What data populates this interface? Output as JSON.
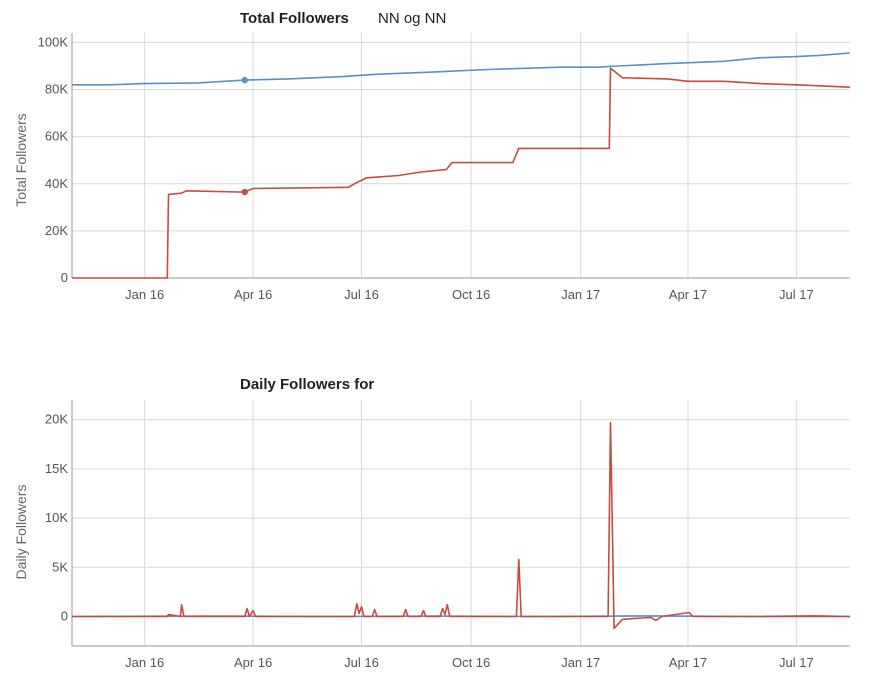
{
  "colors": {
    "series_blue": "#5b8fc9",
    "series_red": "#c94a3e",
    "grid": "#d9d9d9"
  },
  "chart_data": [
    {
      "type": "line",
      "title": "Total Followers",
      "subtitle": "NN og NN",
      "ylabel": "Total Followers",
      "xlabel": "",
      "xlim": [
        "2015-11-01",
        "2017-08-15"
      ],
      "ylim": [
        0,
        104000
      ],
      "x_ticks": [
        {
          "date": "2016-01-01",
          "label": "Jan 16"
        },
        {
          "date": "2016-04-01",
          "label": "Apr 16"
        },
        {
          "date": "2016-07-01",
          "label": "Jul 16"
        },
        {
          "date": "2016-10-01",
          "label": "Oct 16"
        },
        {
          "date": "2017-01-01",
          "label": "Jan 17"
        },
        {
          "date": "2017-04-01",
          "label": "Apr 17"
        },
        {
          "date": "2017-07-01",
          "label": "Jul 17"
        }
      ],
      "y_ticks": [
        {
          "value": 0,
          "label": "0"
        },
        {
          "value": 20000,
          "label": "20K"
        },
        {
          "value": 40000,
          "label": "40K"
        },
        {
          "value": 60000,
          "label": "60K"
        },
        {
          "value": 80000,
          "label": "80K"
        },
        {
          "value": 100000,
          "label": "100K"
        }
      ],
      "grid": true,
      "series": [
        {
          "color": "#5b8fc9",
          "marker": [
            "2016-03-25",
            84000
          ],
          "points": [
            [
              "2015-11-01",
              82000
            ],
            [
              "2015-12-01",
              82000
            ],
            [
              "2016-01-01",
              82500
            ],
            [
              "2016-02-15",
              82800
            ],
            [
              "2016-03-25",
              84000
            ],
            [
              "2016-05-01",
              84500
            ],
            [
              "2016-06-15",
              85500
            ],
            [
              "2016-07-15",
              86500
            ],
            [
              "2016-09-01",
              87500
            ],
            [
              "2016-10-15",
              88500
            ],
            [
              "2016-11-15",
              89000
            ],
            [
              "2016-12-15",
              89500
            ],
            [
              "2017-01-15",
              89500
            ],
            [
              "2017-02-01",
              90000
            ],
            [
              "2017-03-15",
              91000
            ],
            [
              "2017-05-01",
              92000
            ],
            [
              "2017-06-01",
              93500
            ],
            [
              "2017-07-01",
              94000
            ],
            [
              "2017-07-20",
              94500
            ],
            [
              "2017-08-15",
              95500
            ]
          ]
        },
        {
          "color": "#c94a3e",
          "marker": [
            "2016-03-25",
            36500
          ],
          "points": [
            [
              "2015-11-01",
              0
            ],
            [
              "2016-01-20",
              0
            ],
            [
              "2016-01-21",
              35500
            ],
            [
              "2016-02-01",
              36000
            ],
            [
              "2016-02-05",
              37000
            ],
            [
              "2016-03-20",
              36500
            ],
            [
              "2016-03-25",
              36500
            ],
            [
              "2016-04-01",
              38000
            ],
            [
              "2016-06-20",
              38500
            ],
            [
              "2016-06-25",
              40000
            ],
            [
              "2016-07-05",
              42500
            ],
            [
              "2016-08-01",
              43500
            ],
            [
              "2016-08-20",
              45000
            ],
            [
              "2016-09-10",
              46000
            ],
            [
              "2016-09-15",
              49000
            ],
            [
              "2016-11-05",
              49000
            ],
            [
              "2016-11-10",
              55000
            ],
            [
              "2017-01-25",
              55000
            ],
            [
              "2017-01-26",
              89000
            ],
            [
              "2017-02-05",
              85000
            ],
            [
              "2017-03-15",
              84500
            ],
            [
              "2017-04-01",
              83500
            ],
            [
              "2017-05-01",
              83500
            ],
            [
              "2017-06-01",
              82500
            ],
            [
              "2017-07-01",
              82000
            ],
            [
              "2017-08-15",
              81000
            ]
          ]
        }
      ]
    },
    {
      "type": "line",
      "title": "Daily Followers for",
      "ylabel": "Daily Followers",
      "xlabel": "",
      "xlim": [
        "2015-11-01",
        "2017-08-15"
      ],
      "ylim": [
        -3000,
        22000
      ],
      "x_ticks": [
        {
          "date": "2016-01-01",
          "label": "Jan 16"
        },
        {
          "date": "2016-04-01",
          "label": "Apr 16"
        },
        {
          "date": "2016-07-01",
          "label": "Jul 16"
        },
        {
          "date": "2016-10-01",
          "label": "Oct 16"
        },
        {
          "date": "2017-01-01",
          "label": "Jan 17"
        },
        {
          "date": "2017-04-01",
          "label": "Apr 17"
        },
        {
          "date": "2017-07-01",
          "label": "Jul 17"
        }
      ],
      "y_ticks": [
        {
          "value": 0,
          "label": "0"
        },
        {
          "value": 5000,
          "label": "5K"
        },
        {
          "value": 10000,
          "label": "10K"
        },
        {
          "value": 15000,
          "label": "15K"
        },
        {
          "value": 20000,
          "label": "20K"
        }
      ],
      "grid": true,
      "series": [
        {
          "color": "#5b8fc9",
          "points": [
            [
              "2015-11-01",
              0
            ],
            [
              "2016-03-01",
              50
            ],
            [
              "2016-06-01",
              0
            ],
            [
              "2016-09-01",
              40
            ],
            [
              "2016-12-01",
              0
            ],
            [
              "2017-03-01",
              60
            ],
            [
              "2017-06-01",
              0
            ],
            [
              "2017-07-15",
              80
            ],
            [
              "2017-08-15",
              0
            ]
          ]
        },
        {
          "color": "#c94a3e",
          "points": [
            [
              "2015-11-01",
              0
            ],
            [
              "2016-01-20",
              0
            ],
            [
              "2016-01-21",
              200
            ],
            [
              "2016-01-31",
              0
            ],
            [
              "2016-02-01",
              1200
            ],
            [
              "2016-02-03",
              0
            ],
            [
              "2016-03-25",
              0
            ],
            [
              "2016-03-27",
              800
            ],
            [
              "2016-03-29",
              0
            ],
            [
              "2016-04-01",
              600
            ],
            [
              "2016-04-03",
              0
            ],
            [
              "2016-06-25",
              0
            ],
            [
              "2016-06-27",
              1300
            ],
            [
              "2016-06-29",
              300
            ],
            [
              "2016-07-01",
              1000
            ],
            [
              "2016-07-03",
              0
            ],
            [
              "2016-07-10",
              0
            ],
            [
              "2016-07-12",
              700
            ],
            [
              "2016-07-14",
              0
            ],
            [
              "2016-08-05",
              0
            ],
            [
              "2016-08-07",
              700
            ],
            [
              "2016-08-09",
              0
            ],
            [
              "2016-08-20",
              0
            ],
            [
              "2016-08-22",
              600
            ],
            [
              "2016-08-24",
              0
            ],
            [
              "2016-09-05",
              0
            ],
            [
              "2016-09-07",
              800
            ],
            [
              "2016-09-09",
              200
            ],
            [
              "2016-09-11",
              1200
            ],
            [
              "2016-09-13",
              0
            ],
            [
              "2016-11-08",
              0
            ],
            [
              "2016-11-10",
              5800
            ],
            [
              "2016-11-12",
              0
            ],
            [
              "2017-01-24",
              0
            ],
            [
              "2017-01-26",
              19700
            ],
            [
              "2017-01-29",
              -1200
            ],
            [
              "2017-02-05",
              -300
            ],
            [
              "2017-02-15",
              -200
            ],
            [
              "2017-03-01",
              -100
            ],
            [
              "2017-03-05",
              -400
            ],
            [
              "2017-03-10",
              0
            ],
            [
              "2017-04-02",
              400
            ],
            [
              "2017-04-05",
              0
            ],
            [
              "2017-08-15",
              0
            ]
          ]
        }
      ]
    }
  ]
}
